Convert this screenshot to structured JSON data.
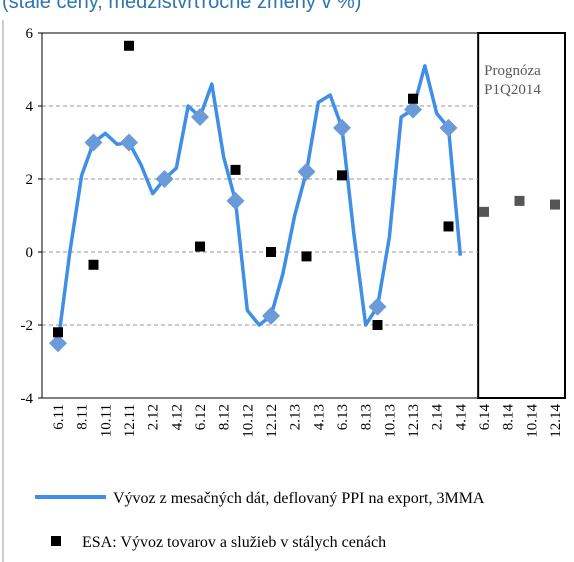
{
  "chart_data": {
    "type": "line",
    "title": "(stále ceny, medzištvrťročné zmeny v %)",
    "categories": [
      "6.11",
      null,
      "8.11",
      null,
      "10.11",
      null,
      "12.11",
      null,
      "2.12",
      null,
      "4.12",
      null,
      "6.12",
      null,
      "8.12",
      null,
      "10.12",
      null,
      "12.12",
      null,
      "2.13",
      null,
      "4.13",
      null,
      "6.13",
      null,
      "8.13",
      null,
      "10.13",
      null,
      "12.13",
      null,
      "2.14",
      null,
      "4.14",
      null,
      "6.14",
      null,
      "8.14",
      null,
      "10.14",
      null,
      "12.14"
    ],
    "series": [
      {
        "name": "Vývoz z mesačných dát, deflovaný PPI na export, 3MMA",
        "color": "#3f8fe6",
        "marker_color": "#6a9bd8",
        "values": [
          -2.5,
          0.0,
          2.1,
          3.0,
          3.25,
          2.95,
          3.0,
          2.4,
          1.6,
          2.0,
          2.3,
          4.0,
          3.7,
          4.6,
          2.6,
          1.4,
          -1.6,
          -2.0,
          -1.75,
          -0.6,
          1.0,
          2.2,
          4.1,
          4.3,
          3.4,
          0.5,
          -2.0,
          -1.5,
          0.4,
          3.7,
          3.9,
          5.1,
          3.8,
          3.4,
          -0.1,
          null,
          null,
          null,
          null,
          null,
          null,
          null,
          null
        ]
      },
      {
        "name": "ESA: Vývoz tovarov a služieb v stálych cenách",
        "color": "#000000",
        "values": [
          -2.2,
          null,
          null,
          -0.35,
          null,
          null,
          5.65,
          null,
          null,
          null,
          null,
          null,
          0.15,
          null,
          null,
          2.25,
          null,
          null,
          0.0,
          null,
          null,
          -0.12,
          null,
          null,
          2.1,
          null,
          null,
          -2.0,
          null,
          null,
          4.2,
          null,
          null,
          0.7,
          null,
          null,
          1.1,
          null,
          null,
          1.4,
          null,
          null,
          1.3
        ]
      }
    ],
    "forecast": {
      "label": [
        "Prognóza",
        "P1Q2014"
      ],
      "start": "6.14",
      "color": "#555555"
    },
    "ylim": [
      -4,
      6
    ],
    "yticks": [
      -4,
      -2,
      0,
      2,
      4,
      6
    ],
    "grid": true
  }
}
